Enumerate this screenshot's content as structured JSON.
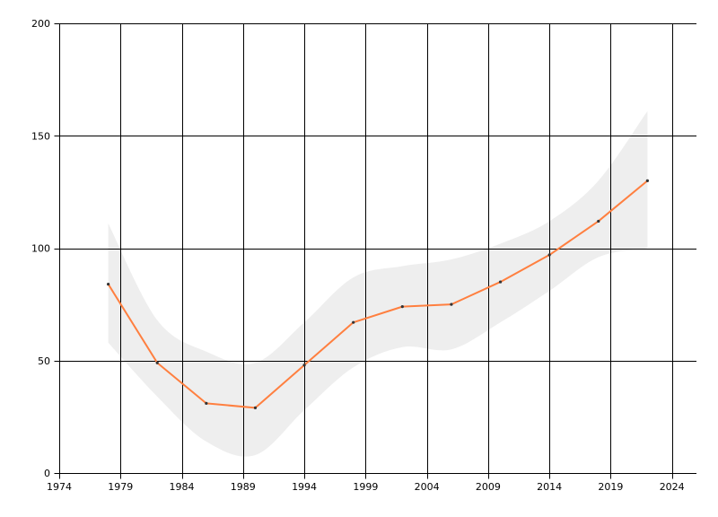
{
  "chart_data": {
    "type": "line",
    "x": [
      1978,
      1982,
      1986,
      1990,
      1994,
      1998,
      2002,
      2006,
      2010,
      2014,
      2018,
      2022
    ],
    "series": [
      {
        "values": [
          84,
          49,
          31,
          29,
          48,
          67,
          74,
          75,
          85,
          97,
          112,
          130
        ],
        "color": "#ff7f3f"
      }
    ],
    "band": {
      "upper": [
        111,
        68,
        54,
        49,
        67,
        87,
        92,
        95,
        102,
        112,
        130,
        161
      ],
      "lower": [
        58,
        34,
        14,
        8,
        28,
        47,
        56,
        55,
        67,
        81,
        96,
        100
      ],
      "color": "#eeeeee"
    },
    "xlim": [
      1974,
      2026
    ],
    "ylim": [
      0,
      200
    ],
    "x_ticks": [
      1974,
      1979,
      1984,
      1989,
      1994,
      1999,
      2004,
      2009,
      2014,
      2019,
      2024
    ],
    "y_ticks": [
      0,
      50,
      100,
      150,
      200
    ],
    "grid": true,
    "title": "",
    "xlabel": "",
    "ylabel": ""
  }
}
